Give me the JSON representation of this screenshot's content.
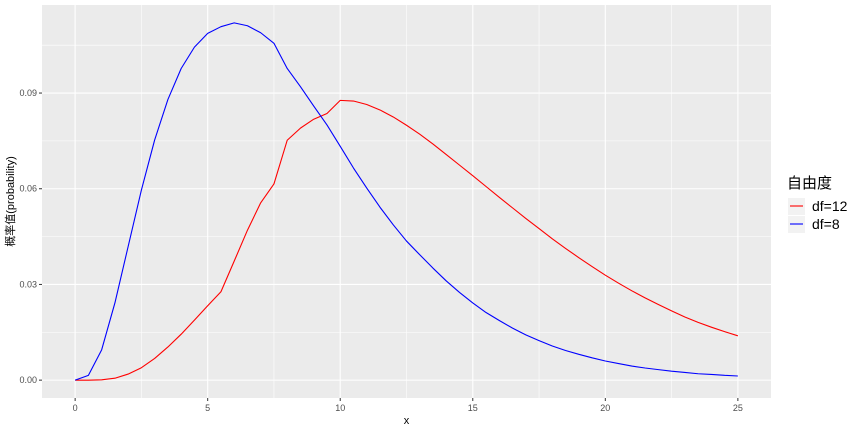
{
  "chart_data": {
    "type": "line",
    "title": "",
    "xlabel": "x",
    "ylabel": "概率值(probability)",
    "xlim": [
      -1.25,
      26.25
    ],
    "ylim": [
      -0.0056,
      0.1176
    ],
    "x_ticks": [
      0,
      5,
      10,
      15,
      20,
      25
    ],
    "x_tick_labels": [
      "0",
      "5",
      "10",
      "15",
      "20",
      "25"
    ],
    "x_minor_ticks": [
      2.5,
      7.5,
      12.5,
      17.5,
      22.5
    ],
    "y_ticks": [
      0,
      0.03,
      0.06,
      0.09
    ],
    "y_tick_labels": [
      "0.00",
      "0.03",
      "0.06",
      "0.09"
    ],
    "y_minor_ticks": [
      0.015,
      0.045,
      0.075,
      0.105
    ],
    "grid": true,
    "panel_background": "#ebebeb",
    "grid_color": "#ffffff",
    "legend": {
      "title": "自由度",
      "position": "right"
    },
    "series": [
      {
        "name": "df=12",
        "color": "#ff0000",
        "x": [
          0,
          0.5,
          1,
          1.5,
          2,
          2.5,
          3,
          3.5,
          4,
          4.5,
          5,
          5.5,
          6,
          6.5,
          7,
          7.5,
          8,
          8.5,
          9,
          9.5,
          10,
          10.5,
          11,
          11.5,
          12,
          12.5,
          13,
          13.5,
          14,
          14.5,
          15,
          15.5,
          16,
          16.5,
          17,
          17.5,
          18,
          18.5,
          19,
          19.5,
          20,
          20.5,
          21,
          21.5,
          22,
          22.5,
          23,
          23.5,
          24,
          24.5,
          25
        ],
        "y": [
          0,
          0.0,
          0.0001,
          0.0006,
          0.0019,
          0.0039,
          0.0068,
          0.0104,
          0.0144,
          0.0188,
          0.0233,
          0.0277,
          0.0373,
          0.047,
          0.0556,
          0.0615,
          0.0752,
          0.079,
          0.0818,
          0.0836,
          0.0877,
          0.0875,
          0.0864,
          0.0847,
          0.0825,
          0.0799,
          0.0771,
          0.074,
          0.0707,
          0.0674,
          0.0641,
          0.0607,
          0.0573,
          0.054,
          0.0507,
          0.0475,
          0.0443,
          0.0413,
          0.0384,
          0.0356,
          0.0329,
          0.0304,
          0.028,
          0.0258,
          0.0237,
          0.0217,
          0.0198,
          0.0181,
          0.0166,
          0.0152,
          0.0139
        ]
      },
      {
        "name": "df=8",
        "color": "#0000ff",
        "x": [
          0,
          0.5,
          1,
          1.5,
          2,
          2.5,
          3,
          3.5,
          4,
          4.5,
          5,
          5.5,
          6,
          6.5,
          7,
          7.5,
          8,
          8.5,
          9,
          9.5,
          10,
          10.5,
          11,
          11.5,
          12,
          12.5,
          13,
          13.5,
          14,
          14.5,
          15,
          15.5,
          16,
          16.5,
          17,
          17.5,
          18,
          18.5,
          19,
          19.5,
          20,
          20.5,
          21,
          21.5,
          22,
          22.5,
          23,
          23.5,
          24,
          24.5,
          25
        ],
        "y": [
          0,
          0.0015,
          0.0095,
          0.0242,
          0.0419,
          0.0596,
          0.0753,
          0.088,
          0.0977,
          0.1044,
          0.1087,
          0.1108,
          0.112,
          0.1111,
          0.1089,
          0.1056,
          0.0977,
          0.092,
          0.0859,
          0.08,
          0.0733,
          0.0665,
          0.0602,
          0.0542,
          0.0487,
          0.0436,
          0.0393,
          0.0351,
          0.0311,
          0.0275,
          0.0242,
          0.0212,
          0.0187,
          0.0163,
          0.0142,
          0.0124,
          0.0107,
          0.0093,
          0.0081,
          0.007,
          0.006,
          0.0052,
          0.0044,
          0.0038,
          0.0033,
          0.0028,
          0.0024,
          0.002,
          0.0018,
          0.0015,
          0.0013
        ]
      }
    ]
  }
}
